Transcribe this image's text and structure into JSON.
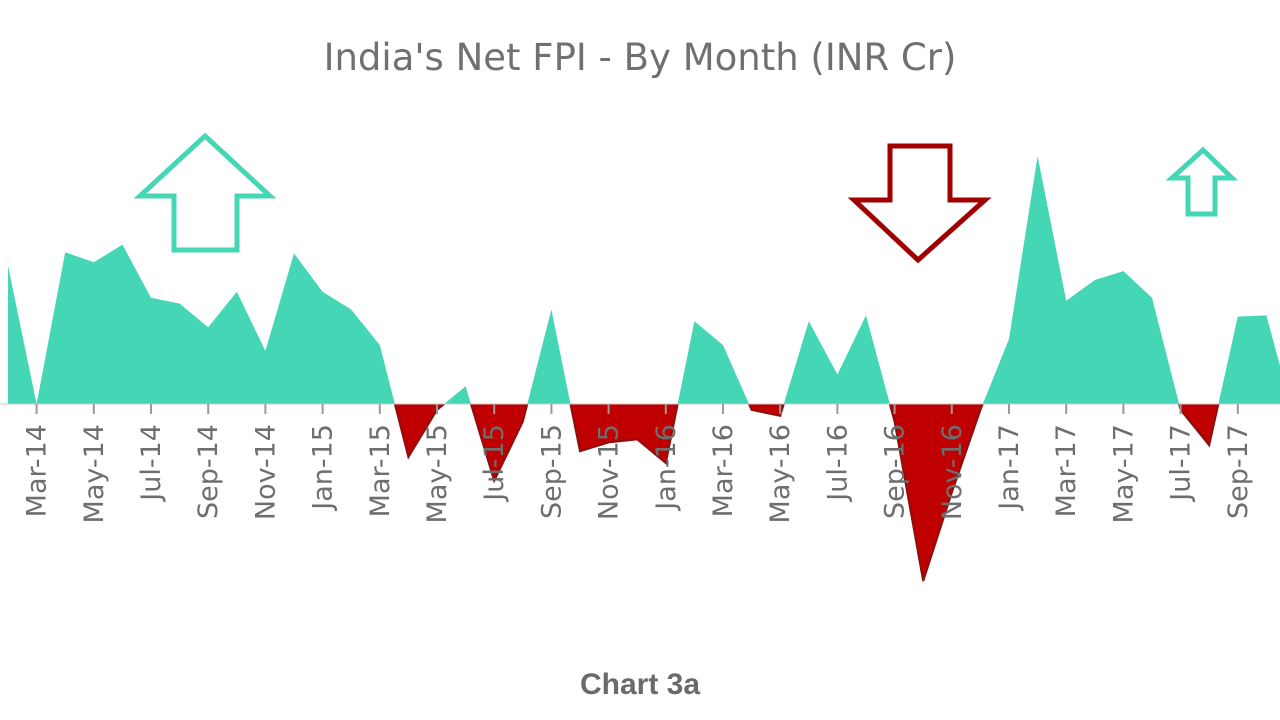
{
  "chart_data": {
    "type": "area",
    "title": "India's Net FPI - By Month (INR Cr)",
    "caption": "Chart 3a",
    "xlabel": "",
    "ylabel": "",
    "ylim": [
      -30000,
      42000
    ],
    "grid": false,
    "legend": "none",
    "colors": {
      "positive": "#44d6b5",
      "negative": "#c00000",
      "up_arrow": "#44d6b5",
      "down_arrow": "#a00000"
    },
    "tick_labels": [
      "Mar-14",
      "May-14",
      "Jul-14",
      "Sep-14",
      "Nov-14",
      "Jan-15",
      "Mar-15",
      "May-15",
      "Jul-15",
      "Sep-15",
      "Nov-15",
      "Jan-16",
      "Mar-16",
      "May-16",
      "Jul-16",
      "Sep-16",
      "Nov-16",
      "Jan-17",
      "Mar-17",
      "May-17",
      "Jul-17",
      "Sep-17",
      "Nov-17"
    ],
    "months": [
      "Feb-14",
      "Mar-14",
      "Apr-14",
      "May-14",
      "Jun-14",
      "Jul-14",
      "Aug-14",
      "Sep-14",
      "Oct-14",
      "Nov-14",
      "Dec-14",
      "Jan-15",
      "Feb-15",
      "Mar-15",
      "Apr-15",
      "May-15",
      "Jun-15",
      "Jul-15",
      "Aug-15",
      "Sep-15",
      "Oct-15",
      "Nov-15",
      "Dec-15",
      "Jan-16",
      "Feb-16",
      "Mar-16",
      "Apr-16",
      "May-16",
      "Jun-16",
      "Jul-16",
      "Aug-16",
      "Sep-16",
      "Oct-16",
      "Nov-16",
      "Dec-16",
      "Jan-17",
      "Feb-17",
      "Mar-17",
      "Apr-17",
      "May-17",
      "Jun-17",
      "Jul-17",
      "Aug-17",
      "Sep-17",
      "Oct-17",
      "Nov-17",
      "Dec-17"
    ],
    "values": [
      23400,
      0,
      25700,
      24000,
      27000,
      18000,
      17000,
      13000,
      19000,
      9000,
      25500,
      19000,
      16000,
      10000,
      -9000,
      -1000,
      3000,
      -13000,
      -3000,
      16000,
      -8000,
      -6500,
      -6000,
      -10000,
      14000,
      10000,
      -1000,
      -2000,
      14000,
      5000,
      15000,
      -3000,
      -30000,
      -15000,
      -1000,
      11000,
      42000,
      17500,
      21000,
      22500,
      18000,
      -1000,
      -7000,
      14800,
      15000,
      -3000,
      13000
    ],
    "annotations": [
      {
        "type": "up-arrow",
        "near": "Sep-14",
        "color": "#44d6b5"
      },
      {
        "type": "down-arrow",
        "near": "Nov-16",
        "color": "#a00000"
      },
      {
        "type": "up-arrow",
        "near": "Sep-17",
        "color": "#44d6b5"
      }
    ]
  }
}
